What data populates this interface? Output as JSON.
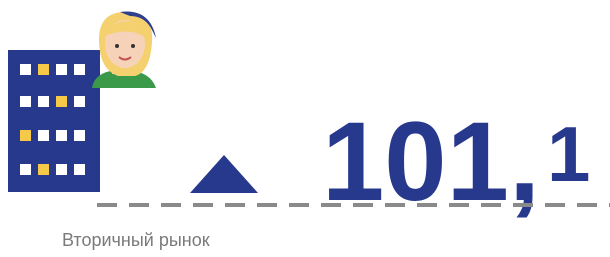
{
  "indicator": {
    "main": "101,",
    "fraction": "1"
  },
  "caption": "Вторичный рынок"
}
